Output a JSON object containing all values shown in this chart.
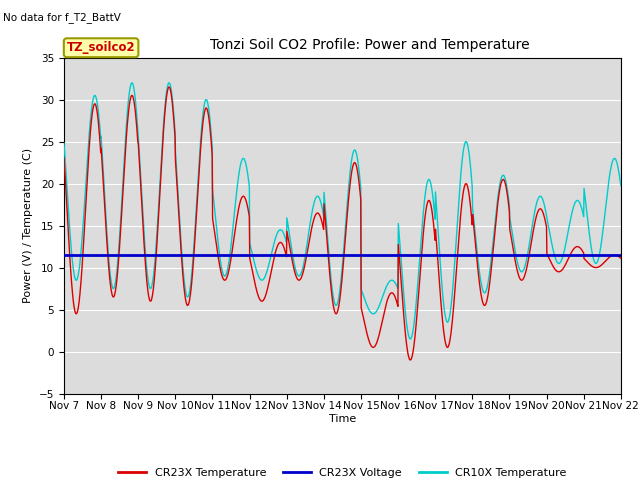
{
  "title": "Tonzi Soil CO2 Profile: Power and Temperature",
  "no_data_text": "No data for f_T2_BattV",
  "legend_box_text": "TZ_soilco2",
  "ylabel": "Power (V) / Temperature (C)",
  "xlabel": "Time",
  "ylim": [
    -5,
    35
  ],
  "yticks": [
    -5,
    0,
    5,
    10,
    15,
    20,
    25,
    30,
    35
  ],
  "voltage_level": 11.5,
  "cr23x_color": "#dd0000",
  "cr10x_color": "#00cccc",
  "voltage_color": "#0000cc",
  "x_tick_labels": [
    "Nov 7",
    "Nov 8",
    "Nov 9",
    "Nov 10",
    "Nov 11",
    "Nov 12",
    "Nov 13",
    "Nov 14",
    "Nov 15",
    "Nov 16",
    "Nov 17",
    "Nov 18",
    "Nov 19",
    "Nov 20",
    "Nov 21",
    "Nov 22"
  ],
  "legend_labels": [
    "CR23X Temperature",
    "CR23X Voltage",
    "CR10X Temperature"
  ],
  "cr23x_peaks": [
    29.5,
    30.5,
    31.5,
    29.0,
    18.5,
    13.0,
    16.5,
    22.5,
    7.0,
    18.0,
    20.0,
    20.5,
    17.0,
    12.5,
    11.5
  ],
  "cr23x_troughs": [
    4.5,
    6.5,
    6.0,
    5.5,
    8.5,
    6.0,
    8.5,
    4.5,
    0.5,
    -1.0,
    0.5,
    5.5,
    8.5,
    9.5,
    10.0
  ],
  "cr10x_peaks": [
    30.5,
    32.0,
    32.0,
    30.0,
    23.0,
    14.5,
    18.5,
    24.0,
    8.5,
    20.5,
    25.0,
    21.0,
    18.5,
    18.0,
    23.0
  ],
  "cr10x_troughs": [
    8.5,
    7.5,
    7.5,
    6.5,
    9.0,
    8.5,
    9.0,
    5.5,
    4.5,
    1.5,
    3.5,
    7.0,
    9.5,
    10.5,
    10.5
  ],
  "peak_phase": 0.58,
  "pts_per_day": 96,
  "days": 15
}
